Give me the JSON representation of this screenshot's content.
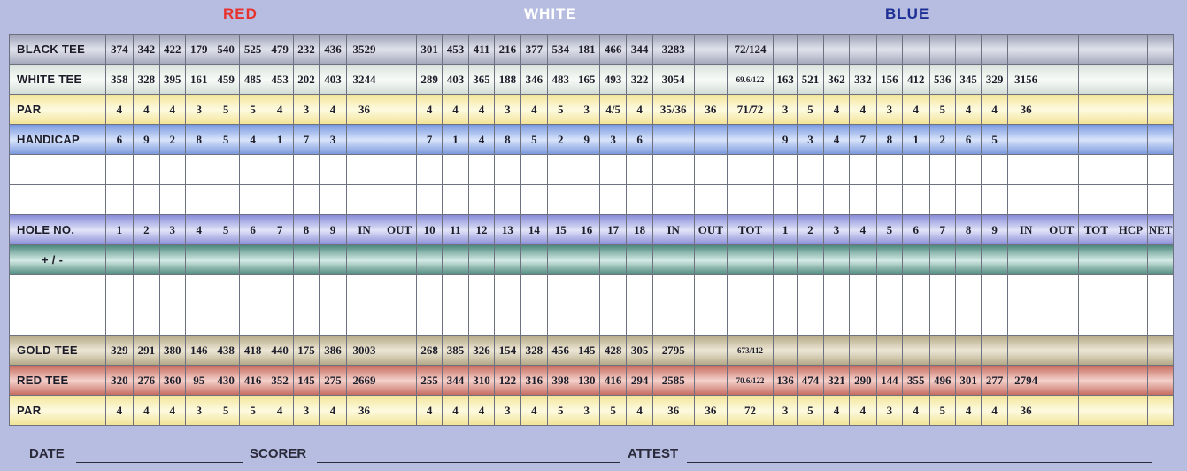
{
  "headers": {
    "red": "RED",
    "white": "WHITE",
    "blue": "BLUE"
  },
  "rows": {
    "black_tee": {
      "label": "BLACK TEE",
      "cells": [
        "374",
        "342",
        "422",
        "179",
        "540",
        "525",
        "479",
        "232",
        "436",
        "3529",
        "",
        "301",
        "453",
        "411",
        "216",
        "377",
        "534",
        "181",
        "466",
        "344",
        "3283",
        "",
        "72/124",
        "",
        "",
        "",
        "",
        "",
        "",
        "",
        "",
        "",
        "",
        "",
        "",
        "",
        ""
      ]
    },
    "white_tee": {
      "label": "WHITE TEE",
      "cells": [
        "358",
        "328",
        "395",
        "161",
        "459",
        "485",
        "453",
        "202",
        "403",
        "3244",
        "",
        "289",
        "403",
        "365",
        "188",
        "346",
        "483",
        "165",
        "493",
        "322",
        "3054",
        "",
        "69.6/122",
        "163",
        "521",
        "362",
        "332",
        "156",
        "412",
        "536",
        "345",
        "329",
        "3156",
        "",
        "",
        "",
        ""
      ]
    },
    "par": {
      "label": "PAR",
      "cells": [
        "4",
        "4",
        "4",
        "3",
        "5",
        "5",
        "4",
        "3",
        "4",
        "36",
        "",
        "4",
        "4",
        "4",
        "3",
        "4",
        "5",
        "3",
        "4/5",
        "4",
        "35/36",
        "36",
        "71/72",
        "3",
        "5",
        "4",
        "4",
        "3",
        "4",
        "5",
        "4",
        "4",
        "36",
        "",
        "",
        "",
        ""
      ]
    },
    "handicap": {
      "label": "HANDICAP",
      "cells": [
        "6",
        "9",
        "2",
        "8",
        "5",
        "4",
        "1",
        "7",
        "3",
        "",
        "",
        "7",
        "1",
        "4",
        "8",
        "5",
        "2",
        "9",
        "3",
        "6",
        "",
        "",
        "",
        "9",
        "3",
        "4",
        "7",
        "8",
        "1",
        "2",
        "6",
        "5",
        "",
        "",
        "",
        "",
        ""
      ]
    },
    "hole_no": {
      "label": "HOLE NO.",
      "cells": [
        "1",
        "2",
        "3",
        "4",
        "5",
        "6",
        "7",
        "8",
        "9",
        "IN",
        "OUT",
        "10",
        "11",
        "12",
        "13",
        "14",
        "15",
        "16",
        "17",
        "18",
        "IN",
        "OUT",
        "TOT",
        "1",
        "2",
        "3",
        "4",
        "5",
        "6",
        "7",
        "8",
        "9",
        "IN",
        "OUT",
        "TOT",
        "HCP",
        "NET"
      ]
    },
    "plus_minus": {
      "label": "+ / -"
    },
    "gold_tee": {
      "label": "GOLD TEE",
      "cells": [
        "329",
        "291",
        "380",
        "146",
        "438",
        "418",
        "440",
        "175",
        "386",
        "3003",
        "",
        "268",
        "385",
        "326",
        "154",
        "328",
        "456",
        "145",
        "428",
        "305",
        "2795",
        "",
        "673/112",
        "",
        "",
        "",
        "",
        "",
        "",
        "",
        "",
        "",
        "",
        "",
        "",
        "",
        ""
      ]
    },
    "red_tee": {
      "label": "RED TEE",
      "cells": [
        "320",
        "276",
        "360",
        "95",
        "430",
        "416",
        "352",
        "145",
        "275",
        "2669",
        "",
        "255",
        "344",
        "310",
        "122",
        "316",
        "398",
        "130",
        "416",
        "294",
        "2585",
        "",
        "70.6/122",
        "136",
        "474",
        "321",
        "290",
        "144",
        "355",
        "496",
        "301",
        "277",
        "2794",
        "",
        "",
        "",
        ""
      ]
    },
    "par2": {
      "label": "PAR",
      "cells": [
        "4",
        "4",
        "4",
        "3",
        "5",
        "5",
        "4",
        "3",
        "4",
        "36",
        "",
        "4",
        "4",
        "4",
        "3",
        "4",
        "5",
        "3",
        "5",
        "4",
        "36",
        "36",
        "72",
        "3",
        "5",
        "4",
        "4",
        "3",
        "4",
        "5",
        "4",
        "4",
        "36",
        "",
        "",
        "",
        ""
      ]
    }
  },
  "footer": {
    "date": "DATE",
    "scorer": "SCORER",
    "attest": "ATTEST"
  }
}
